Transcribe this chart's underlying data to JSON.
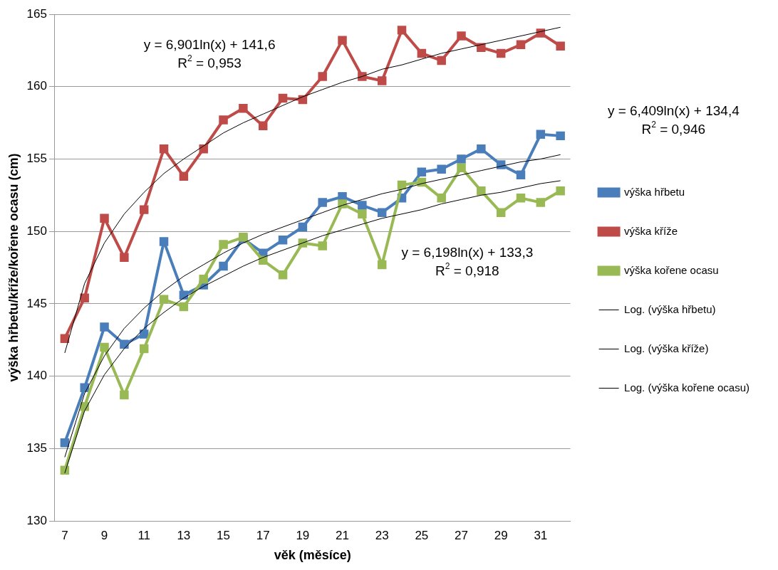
{
  "chart_data": {
    "type": "line",
    "xlabel": "věk (měsíce)",
    "ylabel": "výška hřbetu/kříže/kořene ocasu (cm)",
    "categories": [
      "7",
      null,
      "9",
      null,
      "11",
      null,
      "13",
      null,
      "15",
      null,
      "17",
      null,
      "19",
      null,
      "21",
      null,
      "23",
      null,
      "25",
      null,
      "27",
      null,
      "29",
      null,
      "31",
      null
    ],
    "ylim": [
      130,
      165
    ],
    "yticks": [
      130,
      135,
      140,
      145,
      150,
      155,
      160,
      165
    ],
    "grid": "y",
    "legend": "right",
    "marker": "square",
    "series": [
      {
        "name": "výška hřbetu",
        "color": "#4a7ebb",
        "values": [
          135.4,
          139.2,
          143.4,
          142.2,
          142.9,
          149.3,
          145.6,
          146.3,
          147.6,
          149.5,
          148.5,
          149.4,
          150.3,
          152.0,
          152.4,
          151.8,
          151.3,
          152.3,
          154.1,
          154.3,
          155.0,
          155.7,
          154.6,
          153.9,
          156.7,
          156.6
        ]
      },
      {
        "name": "výška kříže",
        "color": "#be4b48",
        "values": [
          142.6,
          145.4,
          150.9,
          148.2,
          151.5,
          155.7,
          153.8,
          155.7,
          157.7,
          158.5,
          157.3,
          159.2,
          159.1,
          160.7,
          163.2,
          160.7,
          160.4,
          163.9,
          162.3,
          161.8,
          163.5,
          162.7,
          162.3,
          162.9,
          163.7,
          162.8
        ]
      },
      {
        "name": "výška kořene ocasu",
        "color": "#98b954",
        "values": [
          133.5,
          137.9,
          142.0,
          138.7,
          141.9,
          145.3,
          144.8,
          146.7,
          149.1,
          149.6,
          148.0,
          147.0,
          149.2,
          149.0,
          151.9,
          151.2,
          147.7,
          153.2,
          153.4,
          152.3,
          154.4,
          152.8,
          151.3,
          152.3,
          152.0,
          152.8
        ]
      },
      {
        "name": "Log. (výška hřbetu)",
        "type": "line",
        "color": "#000000",
        "marker": "none",
        "values": [
          134.4,
          138.8,
          141.4,
          143.3,
          144.7,
          145.9,
          146.9,
          147.7,
          148.5,
          149.2,
          149.8,
          150.3,
          150.8,
          151.3,
          151.8,
          152.2,
          152.6,
          152.9,
          153.3,
          153.6,
          153.9,
          154.2,
          154.5,
          154.8,
          155.0,
          155.3
        ]
      },
      {
        "name": "Log. (výška kříže)",
        "type": "line",
        "color": "#000000",
        "marker": "none",
        "values": [
          141.6,
          146.4,
          149.2,
          151.2,
          152.7,
          154.0,
          155.0,
          155.9,
          156.8,
          157.5,
          158.1,
          158.7,
          159.3,
          159.8,
          160.3,
          160.7,
          161.2,
          161.5,
          161.9,
          162.3,
          162.6,
          162.9,
          163.2,
          163.5,
          163.8,
          164.1
        ]
      },
      {
        "name": "Log. (výška kořene ocasu)",
        "type": "line",
        "color": "#000000",
        "marker": "none",
        "values": [
          133.3,
          137.6,
          140.1,
          141.9,
          143.3,
          144.4,
          145.4,
          146.2,
          146.9,
          147.6,
          148.2,
          148.7,
          149.2,
          149.7,
          150.1,
          150.5,
          150.9,
          151.2,
          151.5,
          151.9,
          152.2,
          152.5,
          152.7,
          153.0,
          153.3,
          153.5
        ]
      }
    ],
    "annotations": [
      "y = 6,901ln(x) + 141,6\nR$^{2}$ = 0,953",
      "y = 6,409ln(x) + 134,4\nR$^{2}$ = 0,946",
      "y = 6,198ln(x) + 133,3\nR$^{2}$ = 0,918"
    ]
  }
}
